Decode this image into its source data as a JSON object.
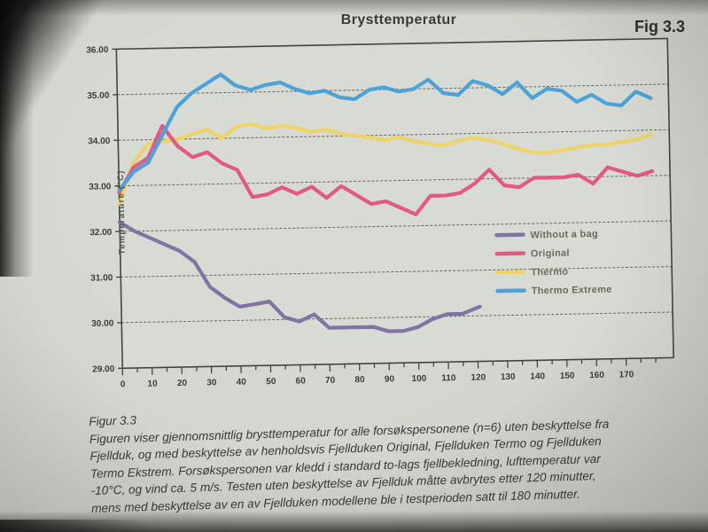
{
  "figure": {
    "title": "Brysttemperatur",
    "fig_label": "Fig 3.3"
  },
  "chart_data": {
    "type": "line",
    "title": "Brysttemperatur",
    "xlabel": "",
    "ylabel": "Temperature (°C)",
    "xlim": [
      0,
      186
    ],
    "ylim": [
      29,
      36
    ],
    "grid": "horizontal-dashed",
    "legend_position": "inside-right",
    "plot_bg": "#d8dbd3",
    "grid_color": "#53534c",
    "axis_color": "#45453f",
    "legend_text_color": "#6e695c",
    "y_ticks": [
      36,
      35,
      34,
      33,
      32,
      31,
      30,
      29
    ],
    "y_tick_labels": [
      "36.00",
      "35.00",
      "34.00",
      "33.00",
      "32.00",
      "31.00",
      "30.00",
      "29.00"
    ],
    "x_major_ticks": [
      0,
      10,
      20,
      30,
      40,
      50,
      60,
      70,
      80,
      90,
      100,
      110,
      120,
      130,
      140,
      150,
      160,
      170
    ],
    "x_minor_step": 5,
    "x_minor_max": 180,
    "series": [
      {
        "name": "Without a bag",
        "color": "#8174a4",
        "x": [
          0,
          5,
          10,
          15,
          20,
          25,
          30,
          35,
          40,
          45,
          50,
          55,
          60,
          65,
          70,
          75,
          80,
          85,
          90,
          95,
          100,
          105,
          110,
          115,
          121
        ],
        "values": [
          32.2,
          32.0,
          31.85,
          31.7,
          31.55,
          31.3,
          30.75,
          30.5,
          30.3,
          30.35,
          30.4,
          30.05,
          29.95,
          30.1,
          29.8,
          29.8,
          29.8,
          29.8,
          29.7,
          29.7,
          29.78,
          29.95,
          30.05,
          30.05,
          30.2
        ]
      },
      {
        "name": "Original",
        "color": "#e25a80",
        "x": [
          0,
          5,
          10,
          15,
          20,
          25,
          30,
          35,
          40,
          45,
          50,
          55,
          60,
          65,
          70,
          75,
          80,
          85,
          90,
          95,
          100,
          105,
          110,
          115,
          120,
          125,
          130,
          135,
          140,
          145,
          150,
          155,
          160,
          165,
          170,
          175,
          180
        ],
        "values": [
          32.85,
          33.4,
          33.6,
          34.3,
          33.85,
          33.6,
          33.7,
          33.45,
          33.3,
          32.7,
          32.75,
          32.9,
          32.75,
          32.9,
          32.65,
          32.9,
          32.7,
          32.5,
          32.55,
          32.4,
          32.25,
          32.65,
          32.65,
          32.7,
          32.9,
          33.2,
          32.85,
          32.8,
          33.0,
          33.0,
          33.0,
          33.05,
          32.85,
          33.2,
          33.1,
          33.0,
          33.1
        ]
      },
      {
        "name": "Thermo",
        "color": "#edd368",
        "x": [
          0,
          5,
          10,
          15,
          20,
          25,
          30,
          35,
          40,
          45,
          50,
          55,
          60,
          65,
          70,
          75,
          80,
          85,
          90,
          95,
          100,
          105,
          110,
          115,
          120,
          125,
          130,
          135,
          140,
          145,
          150,
          155,
          160,
          165,
          170,
          175,
          180
        ],
        "values": [
          32.6,
          33.5,
          33.9,
          33.95,
          34.0,
          34.1,
          34.2,
          34.0,
          34.25,
          34.3,
          34.2,
          34.25,
          34.2,
          34.1,
          34.15,
          34.05,
          34.0,
          33.95,
          33.9,
          33.95,
          33.85,
          33.8,
          33.75,
          33.85,
          33.9,
          33.85,
          33.75,
          33.65,
          33.55,
          33.55,
          33.6,
          33.65,
          33.7,
          33.7,
          33.75,
          33.8,
          33.9
        ]
      },
      {
        "name": "Thermo Extreme",
        "color": "#4da3d8",
        "x": [
          0,
          5,
          10,
          15,
          20,
          25,
          30,
          35,
          40,
          45,
          50,
          55,
          60,
          65,
          70,
          75,
          80,
          85,
          90,
          95,
          100,
          105,
          110,
          115,
          120,
          125,
          130,
          135,
          140,
          145,
          150,
          155,
          160,
          165,
          170,
          175,
          180
        ],
        "values": [
          32.9,
          33.3,
          33.5,
          34.1,
          34.7,
          35.0,
          35.2,
          35.4,
          35.15,
          35.05,
          35.15,
          35.2,
          35.05,
          34.95,
          35.0,
          34.85,
          34.8,
          35.0,
          35.05,
          34.95,
          35.0,
          35.2,
          34.9,
          34.85,
          35.15,
          35.05,
          34.85,
          35.1,
          34.75,
          34.95,
          34.9,
          34.65,
          34.8,
          34.6,
          34.55,
          34.85,
          34.7
        ]
      }
    ]
  },
  "caption": {
    "heading": "Figur 3.3",
    "body": "Figuren viser gjennomsnittlig brysttemperatur for alle forsøkspersonene (n=6) uten beskyttelse fra\nFjellduk, og med beskyttelse av henholdsvis Fjellduken Original, Fjellduken Termo og Fjellduken\nTermo Ekstrem. Forsøkspersonen var kledd i standard to-lags fjellbekledning, lufttemperatur var\n-10°C, og vind ca. 5 m/s. Testen uten beskyttelse av Fjellduk måtte avbrytes etter 120 minutter,\nmens med beskyttelse av en av Fjellduken modellene ble i testperioden satt til 180 minutter."
  }
}
